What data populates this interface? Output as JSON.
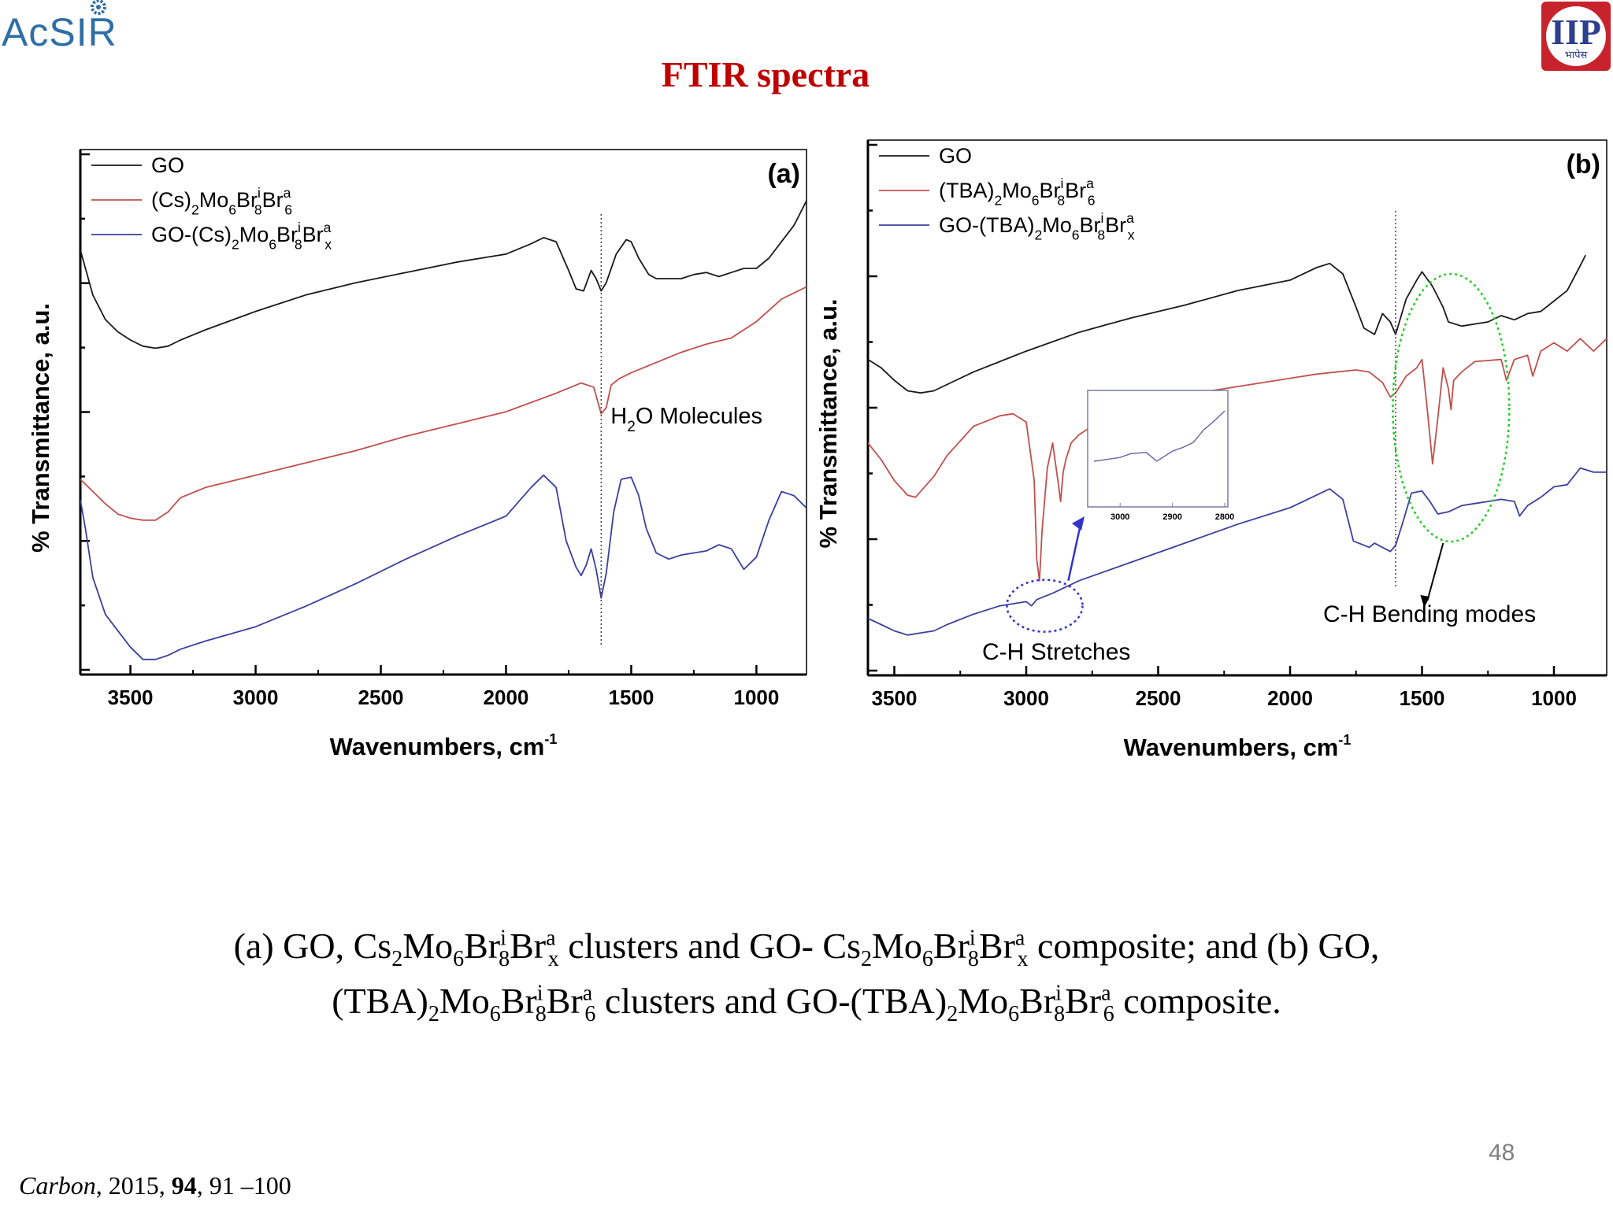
{
  "header": {
    "left_logo_text": "AcSIR",
    "right_logo_text": "IIP",
    "right_logo_subtext": "भापेस",
    "title": "FTIR spectra"
  },
  "colors": {
    "title": "#c00000",
    "go": "#1a1a1a",
    "cluster": "#c0504d",
    "composite": "#3b3f9e",
    "annotation_green": "#22cc22",
    "annotation_blue": "#3333cc"
  },
  "chart_data": [
    {
      "type": "line",
      "panel_label": "(a)",
      "xlabel": "Wavenumbers, cm",
      "xlabel_sup": "-1",
      "ylabel": "% Transmittance, a.u.",
      "xlim": [
        3700,
        800
      ],
      "x_reversed": true,
      "ylim": [
        0,
        100
      ],
      "y_tick_labels": false,
      "xticks": [
        "3500",
        "3000",
        "2500",
        "2000",
        "1500",
        "1000"
      ],
      "legend": [
        {
          "label": "GO"
        },
        {
          "label_parts": [
            "(Cs)",
            "2",
            "Mo",
            "6",
            "Br",
            "i",
            "8",
            "Br",
            "a",
            "6"
          ]
        },
        {
          "label_parts": [
            "GO-(Cs)",
            "2",
            "Mo",
            "6",
            "Br",
            "i",
            "8",
            "Br",
            "a",
            "x"
          ]
        }
      ],
      "annotations": [
        {
          "text_parts": [
            "H",
            "2",
            "O Molecules"
          ],
          "x": 1620
        }
      ],
      "series": [
        {
          "name": "GO",
          "color": "#1a1a1a",
          "x": [
            3700,
            3650,
            3600,
            3550,
            3500,
            3450,
            3400,
            3350,
            3300,
            3200,
            3000,
            2800,
            2600,
            2400,
            2200,
            2000,
            1900,
            1850,
            1800,
            1750,
            1720,
            1690,
            1660,
            1640,
            1620,
            1600,
            1560,
            1520,
            1500,
            1470,
            1430,
            1400,
            1350,
            1300,
            1250,
            1200,
            1150,
            1100,
            1050,
            1000,
            950,
            900,
            850,
            800
          ],
          "y": [
            96,
            85,
            79,
            76,
            74,
            72.5,
            72,
            72.5,
            74,
            76.5,
            81,
            85,
            88,
            90.5,
            93,
            95,
            97.5,
            99,
            98,
            91,
            86.5,
            86,
            91,
            89,
            86,
            88,
            95,
            98.5,
            98,
            94,
            90,
            89,
            89,
            89,
            90,
            90.5,
            89.5,
            90.5,
            91.5,
            91.5,
            94,
            98,
            102,
            108
          ]
        },
        {
          "name": "(Cs)2Mo6Bri8Bra6",
          "color": "#c0504d",
          "x": [
            3700,
            3650,
            3600,
            3550,
            3500,
            3450,
            3400,
            3350,
            3300,
            3200,
            3000,
            2800,
            2600,
            2400,
            2200,
            2000,
            1800,
            1700,
            1650,
            1620,
            1600,
            1580,
            1550,
            1500,
            1400,
            1300,
            1200,
            1100,
            1000,
            900,
            800
          ],
          "y": [
            40,
            37,
            34,
            31.5,
            30.5,
            30,
            30,
            32,
            35.5,
            38,
            41,
            44,
            47,
            50.5,
            53.5,
            56.5,
            61,
            63.5,
            62.5,
            56,
            57.5,
            63,
            64.5,
            66,
            68.5,
            71,
            73,
            74.5,
            78.5,
            84,
            87
          ]
        },
        {
          "name": "GO-(Cs)2Mo6Bri8Brax",
          "color": "#3b3f9e",
          "x": [
            3700,
            3680,
            3650,
            3600,
            3550,
            3500,
            3450,
            3400,
            3350,
            3300,
            3200,
            3000,
            2800,
            2600,
            2400,
            2200,
            2000,
            1900,
            1850,
            1800,
            1760,
            1720,
            1700,
            1680,
            1660,
            1640,
            1620,
            1600,
            1570,
            1540,
            1500,
            1470,
            1440,
            1400,
            1350,
            1300,
            1250,
            1200,
            1150,
            1100,
            1050,
            1000,
            950,
            900,
            850,
            800
          ],
          "y": [
            35,
            28,
            16,
            7,
            3,
            -1,
            -4,
            -4,
            -3,
            -1.5,
            0.5,
            4,
            9,
            14.5,
            20.5,
            26,
            31,
            38,
            41,
            38,
            25,
            18.5,
            16.5,
            19,
            23,
            18,
            11,
            17,
            32,
            40,
            40.5,
            36,
            28,
            22,
            20.5,
            21.5,
            22,
            22.5,
            24,
            23,
            18,
            21,
            30,
            37,
            36,
            33
          ]
        }
      ]
    },
    {
      "type": "line",
      "panel_label": "(b)",
      "xlabel": "Wavenumbers, cm",
      "xlabel_sup": "-1",
      "ylabel": "% Transmittance, a.u.",
      "xlim": [
        3600,
        800
      ],
      "x_reversed": true,
      "ylim": [
        0,
        100
      ],
      "y_tick_labels": false,
      "xticks": [
        "3500",
        "3000",
        "2500",
        "2000",
        "1500",
        "1000"
      ],
      "legend": [
        {
          "label": "GO"
        },
        {
          "label_parts": [
            "(TBA)",
            "2",
            "Mo",
            "6",
            "Br",
            "i",
            "8",
            "Br",
            "a",
            "6"
          ]
        },
        {
          "label_parts": [
            "GO-(TBA)",
            "2",
            "Mo",
            "6",
            "Br",
            "i",
            "8",
            "Br",
            "a",
            "x"
          ]
        }
      ],
      "annotations": [
        {
          "text": "C-H Stretches"
        },
        {
          "text": "C-H Bending modes"
        }
      ],
      "inset": {
        "xticks": [
          "3000",
          "2900",
          "2800"
        ],
        "x": [
          3050,
          3000,
          2980,
          2950,
          2930,
          2900,
          2880,
          2860,
          2840,
          2820,
          2800
        ],
        "y": [
          30,
          33,
          36,
          37,
          30,
          38,
          41,
          45,
          55,
          62,
          70
        ]
      },
      "series": [
        {
          "name": "GO",
          "color": "#1a1a1a",
          "x": [
            3600,
            3550,
            3500,
            3450,
            3400,
            3350,
            3300,
            3200,
            3000,
            2800,
            2600,
            2400,
            2200,
            2000,
            1900,
            1850,
            1800,
            1750,
            1720,
            1680,
            1650,
            1620,
            1600,
            1560,
            1520,
            1500,
            1460,
            1420,
            1400,
            1350,
            1300,
            1250,
            1200,
            1150,
            1100,
            1050,
            1000,
            950,
            900,
            880
          ],
          "y": [
            70,
            68,
            65,
            62.5,
            62,
            62.5,
            64,
            67,
            72,
            76.5,
            80,
            83,
            86.5,
            89,
            92,
            93,
            90.5,
            82.5,
            77.5,
            76,
            81,
            79,
            76,
            84.5,
            89,
            91,
            87.5,
            82.5,
            79,
            78,
            78.5,
            79,
            80.5,
            79.5,
            81,
            81.5,
            84,
            86.5,
            92.5,
            95
          ]
        },
        {
          "name": "(TBA)2Mo6Bri8Bra6",
          "color": "#c0504d",
          "x": [
            3600,
            3550,
            3500,
            3450,
            3420,
            3350,
            3300,
            3200,
            3100,
            3050,
            3000,
            2970,
            2960,
            2950,
            2940,
            2920,
            2900,
            2880,
            2870,
            2860,
            2850,
            2830,
            2800,
            2700,
            2500,
            2300,
            2100,
            1900,
            1750,
            1700,
            1650,
            1620,
            1600,
            1560,
            1520,
            1500,
            1480,
            1460,
            1440,
            1420,
            1400,
            1390,
            1380,
            1350,
            1300,
            1200,
            1180,
            1150,
            1100,
            1080,
            1050,
            1000,
            950,
            900,
            850,
            800
          ],
          "y": [
            50,
            46,
            41,
            37.5,
            37,
            42,
            47,
            54,
            56.5,
            57,
            55,
            41,
            22,
            17,
            29,
            44,
            50,
            41,
            36,
            43,
            46,
            50,
            52,
            56,
            59.5,
            62.5,
            64.5,
            66.5,
            67.5,
            67,
            64.5,
            61,
            62,
            66,
            68,
            70,
            58,
            45,
            56,
            68,
            63,
            58,
            65,
            67,
            69.5,
            70,
            65,
            70,
            71,
            66,
            72,
            74,
            72,
            75,
            72,
            75
          ]
        },
        {
          "name": "GO-(TBA)2Mo6Bri8Brax",
          "color": "#3b3f9e",
          "x": [
            3600,
            3550,
            3500,
            3450,
            3400,
            3350,
            3300,
            3200,
            3100,
            3000,
            2980,
            2960,
            2900,
            2800,
            2600,
            2400,
            2200,
            2000,
            1900,
            1850,
            1800,
            1760,
            1720,
            1700,
            1680,
            1650,
            1620,
            1600,
            1570,
            1540,
            1500,
            1470,
            1440,
            1400,
            1350,
            1300,
            1250,
            1200,
            1150,
            1130,
            1100,
            1050,
            1000,
            950,
            900,
            850,
            800
          ],
          "y": [
            8,
            6.5,
            5,
            4,
            4.5,
            5,
            6.5,
            9,
            11,
            12,
            11,
            12.5,
            14,
            17,
            21.5,
            26,
            30.5,
            34.5,
            37.5,
            39,
            36.5,
            26.5,
            25.5,
            25,
            26,
            25,
            24,
            25.5,
            31.5,
            38,
            38.5,
            36,
            33,
            33.5,
            35,
            35.5,
            36,
            36.5,
            36,
            32.5,
            35,
            37,
            39.5,
            40,
            44,
            43,
            43
          ]
        }
      ]
    }
  ],
  "caption": {
    "line1_parts": [
      "(a) GO, Cs",
      "2",
      "Mo",
      "6",
      "Br",
      "i",
      "8",
      "Br",
      "a",
      "x",
      " clusters and GO- Cs",
      "2",
      "Mo",
      "6",
      "Br",
      "i",
      "8",
      "Br",
      "a",
      "x",
      " composite; and (b) GO,"
    ],
    "line2_parts": [
      "(TBA)",
      "2",
      "Mo",
      "6",
      "Br",
      "i",
      "8",
      "Br",
      "a",
      "6",
      " clusters and GO-(TBA)",
      "2",
      "Mo",
      "6",
      "Br",
      "i",
      "8",
      "Br",
      "a",
      "6",
      " composite."
    ]
  },
  "footer": {
    "page_number": "48",
    "reference_journal": "Carbon",
    "reference_year": ", 2015, ",
    "reference_volume": "94",
    "reference_pages": ", 91 –100"
  }
}
